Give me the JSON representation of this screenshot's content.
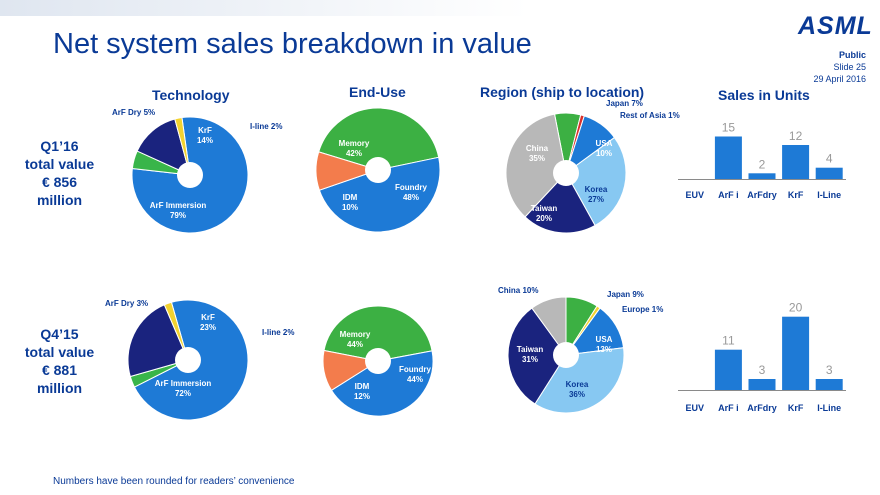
{
  "slide": {
    "title": "Net system sales breakdown in value",
    "logo": "ASML",
    "classification": "Public",
    "slide_number": "Slide 25",
    "date": "29 April 2016",
    "footnote": "Numbers have been rounded for readers’ convenience"
  },
  "rows": [
    {
      "label_lines": [
        "Q1’16",
        "total value",
        "€ 856",
        "million"
      ]
    },
    {
      "label_lines": [
        "Q4’15",
        "total value",
        "€ 881",
        "million"
      ]
    }
  ],
  "colors": {
    "brand": "#0a3a96",
    "arfi": "#1e7ad6",
    "arfdry": "#39b54a",
    "krf": "#1a237e",
    "iline": "#f2d230",
    "memory": "#3cb043",
    "idm": "#f37c4c",
    "foundry": "#1e7ad6",
    "china": "#b8b8b8",
    "japan": "#3cb043",
    "rest_asia": "#d9302c",
    "usa": "#1e7ad6",
    "korea": "#87c8f2",
    "taiwan": "#1a237e",
    "europe": "#f2d230",
    "bar": "#1e7ad6"
  },
  "chart_data": [
    {
      "type": "pie",
      "section": "Technology",
      "title": "Technology",
      "period": "Q1’16",
      "slices": [
        {
          "name": "ArF Immersion",
          "value": 79,
          "label": "79%"
        },
        {
          "name": "ArF Dry",
          "value": 5,
          "label": "5%"
        },
        {
          "name": "KrF",
          "value": 14,
          "label": "14%"
        },
        {
          "name": "I-line",
          "value": 2,
          "label": "2%"
        }
      ]
    },
    {
      "type": "pie",
      "section": "End-Use",
      "title": "End-Use",
      "period": "Q1’16",
      "slices": [
        {
          "name": "Memory",
          "value": 42,
          "label": "42%"
        },
        {
          "name": "Foundry",
          "value": 48,
          "label": "48%"
        },
        {
          "name": "IDM",
          "value": 10,
          "label": "10%"
        }
      ]
    },
    {
      "type": "pie",
      "section": "Region",
      "title": "Region (ship to location)",
      "period": "Q1’16",
      "slices": [
        {
          "name": "Japan",
          "value": 7,
          "label": "7%"
        },
        {
          "name": "Rest of Asia",
          "value": 1,
          "label": "1%"
        },
        {
          "name": "USA",
          "value": 10,
          "label": "10%"
        },
        {
          "name": "Korea",
          "value": 27,
          "label": "27%"
        },
        {
          "name": "Taiwan",
          "value": 20,
          "label": "20%"
        },
        {
          "name": "China",
          "value": 35,
          "label": "35%"
        }
      ]
    },
    {
      "type": "bar",
      "section": "Units",
      "title": "Sales in Units",
      "period": "Q1’16",
      "categories": [
        "EUV",
        "ArF i",
        "ArFdry",
        "KrF",
        "I-Line"
      ],
      "values": [
        0,
        15,
        2,
        12,
        4
      ],
      "data_labels": [
        "",
        "15",
        "2",
        "12",
        "4"
      ],
      "ylim": [
        0,
        24
      ]
    },
    {
      "type": "pie",
      "section": "Technology",
      "title": "Technology",
      "period": "Q4’15",
      "slices": [
        {
          "name": "ArF Immersion",
          "value": 72,
          "label": "72%"
        },
        {
          "name": "ArF Dry",
          "value": 3,
          "label": "3%"
        },
        {
          "name": "KrF",
          "value": 23,
          "label": "23%"
        },
        {
          "name": "I-line",
          "value": 2,
          "label": "2%"
        }
      ]
    },
    {
      "type": "pie",
      "section": "End-Use",
      "title": "End-Use",
      "period": "Q4’15",
      "slices": [
        {
          "name": "Memory",
          "value": 44,
          "label": "44%"
        },
        {
          "name": "Foundry",
          "value": 44,
          "label": "44%"
        },
        {
          "name": "IDM",
          "value": 12,
          "label": "12%"
        }
      ]
    },
    {
      "type": "pie",
      "section": "Region",
      "title": "Region (ship to location)",
      "period": "Q4’15",
      "slices": [
        {
          "name": "Japan",
          "value": 9,
          "label": "9%"
        },
        {
          "name": "Europe",
          "value": 1,
          "label": "1%"
        },
        {
          "name": "USA",
          "value": 13,
          "label": "13%"
        },
        {
          "name": "Korea",
          "value": 36,
          "label": "36%"
        },
        {
          "name": "Taiwan",
          "value": 31,
          "label": "31%"
        },
        {
          "name": "China",
          "value": 10,
          "label": "10%"
        }
      ]
    },
    {
      "type": "bar",
      "section": "Units",
      "title": "Sales in Units",
      "period": "Q4’15",
      "categories": [
        "EUV",
        "ArF i",
        "ArFdry",
        "KrF",
        "I-Line"
      ],
      "values": [
        0,
        11,
        3,
        20,
        3
      ],
      "data_labels": [
        "",
        "11",
        "3",
        "20",
        "3"
      ],
      "ylim": [
        0,
        24
      ]
    }
  ]
}
